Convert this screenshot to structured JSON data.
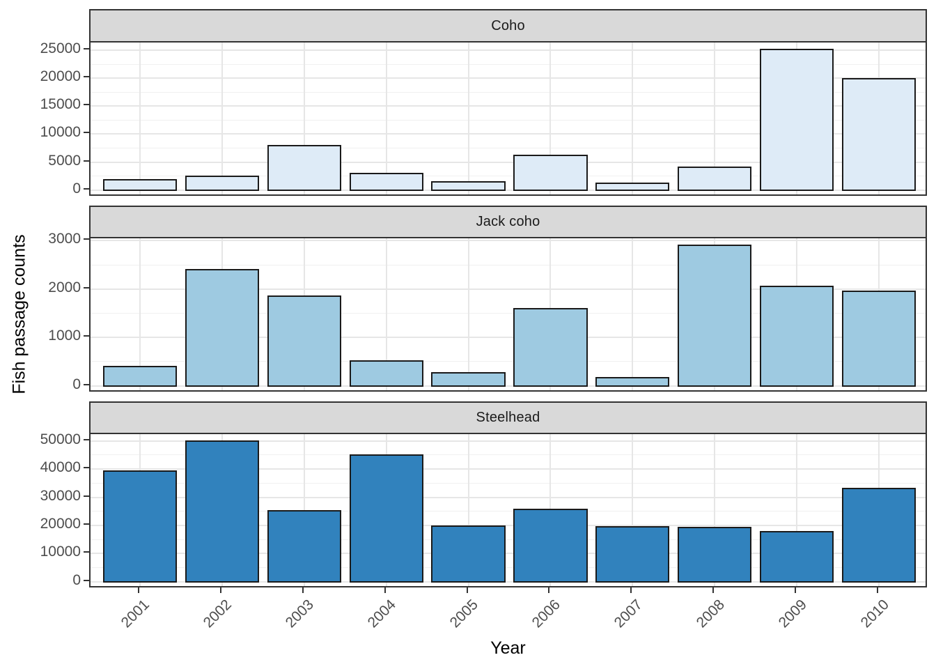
{
  "chart_data": {
    "type": "bar",
    "title": "",
    "faceted_by": "species (rows)",
    "categories": [
      "2001",
      "2002",
      "2003",
      "2004",
      "2005",
      "2006",
      "2007",
      "2008",
      "2009",
      "2010"
    ],
    "xlabel": "Year",
    "ylabel": "Fish passage counts",
    "legend": "none",
    "grid": "major and minor horizontal light-gray lines, major vertical lines at each year, white panel background, gray strip headers",
    "bar_outline_color": "#1a1a1a",
    "strip_background": "#D9D9D9",
    "axis_text_color": "#4D4D4D",
    "series": [
      {
        "name": "Coho",
        "fill": "#DEEBF7",
        "values": [
          1800,
          2500,
          7900,
          3000,
          1500,
          6200,
          1200,
          4100,
          25100,
          19900
        ],
        "y_ticks": [
          0,
          5000,
          10000,
          15000,
          20000,
          25000
        ],
        "y_minor_step": 2500,
        "ylim": [
          -1300,
          26400
        ]
      },
      {
        "name": "Jack coho",
        "fill": "#9ECAE1",
        "values": [
          400,
          2400,
          1850,
          520,
          270,
          1600,
          170,
          2900,
          2050,
          1950
        ],
        "y_ticks": [
          0,
          1000,
          2000,
          3000
        ],
        "y_minor_step": 500,
        "ylim": [
          -150,
          3050
        ]
      },
      {
        "name": "Steelhead",
        "fill": "#3182BD",
        "values": [
          39400,
          49900,
          25200,
          44900,
          19700,
          25600,
          19400,
          19200,
          17900,
          33200
        ],
        "y_ticks": [
          0,
          10000,
          20000,
          30000,
          40000,
          50000
        ],
        "y_minor_step": 5000,
        "ylim": [
          -2500,
          52400
        ]
      }
    ]
  }
}
